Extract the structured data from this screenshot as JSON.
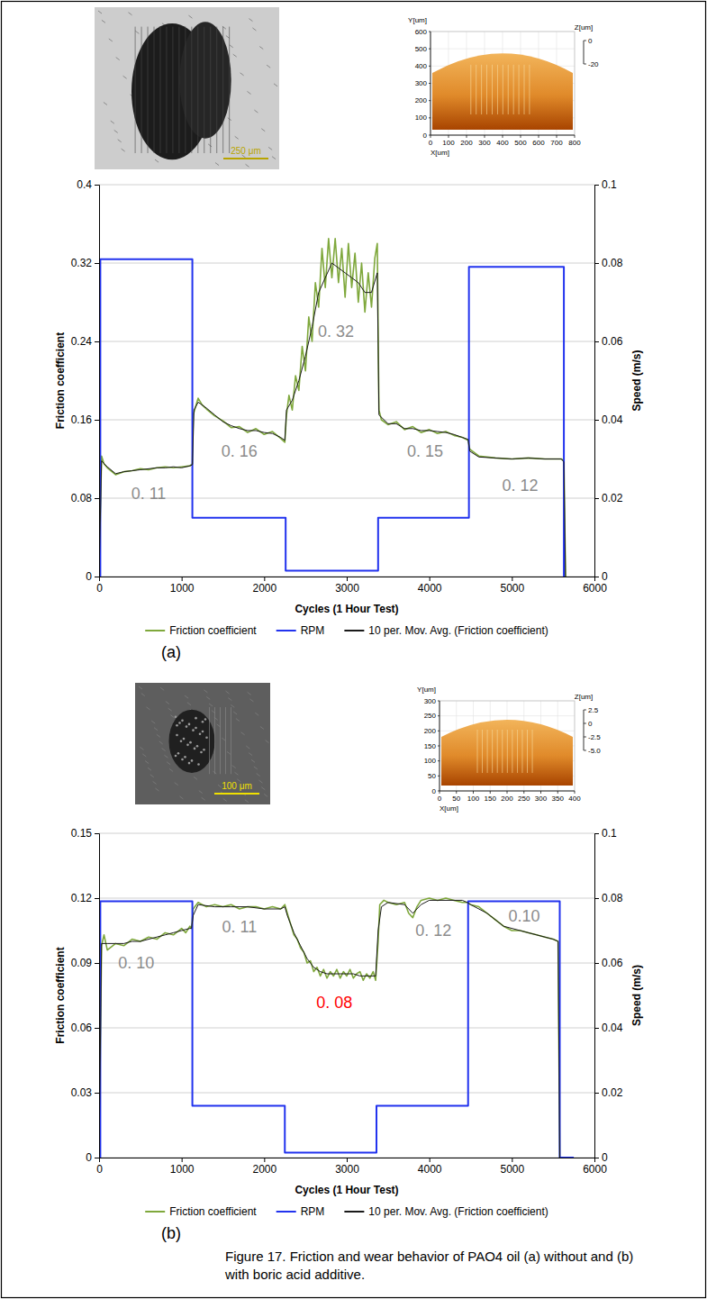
{
  "chart_data": [
    {
      "type": "line",
      "panel_label": "(a)",
      "x_label": "Cycles (1 Hour Test)",
      "y_label": "Friction coefficient",
      "y2_label": "Speed (m/s)",
      "xlim": [
        0,
        6000
      ],
      "xticks": [
        0,
        1000,
        2000,
        3000,
        4000,
        5000,
        6000
      ],
      "ylim": [
        0,
        0.4
      ],
      "yticks": [
        0,
        0.08,
        0.16,
        0.24,
        0.32,
        0.4
      ],
      "y2lim": [
        0,
        0.1
      ],
      "y2ticks": [
        0,
        0.02,
        0.04,
        0.06,
        0.08,
        0.1
      ],
      "grid": true,
      "legend": "bottom",
      "series": [
        {
          "name": "Friction coefficient",
          "color": "#7fa83c",
          "x": [
            0,
            30,
            60,
            100,
            200,
            300,
            400,
            500,
            600,
            700,
            800,
            900,
            1000,
            1100,
            1130,
            1140,
            1200,
            1250,
            1300,
            1400,
            1500,
            1600,
            1700,
            1800,
            1900,
            2000,
            2100,
            2200,
            2250,
            2270,
            2300,
            2340,
            2380,
            2420,
            2460,
            2500,
            2540,
            2580,
            2620,
            2660,
            2700,
            2740,
            2780,
            2820,
            2860,
            2900,
            2940,
            2980,
            3020,
            3060,
            3100,
            3140,
            3180,
            3220,
            3260,
            3300,
            3340,
            3370,
            3390,
            3420,
            3500,
            3600,
            3700,
            3800,
            3900,
            4000,
            4100,
            4200,
            4300,
            4400,
            4470,
            4490,
            4600,
            4800,
            5000,
            5200,
            5400,
            5600,
            5630,
            5650
          ],
          "values": [
            0,
            0.123,
            0.115,
            0.111,
            0.104,
            0.107,
            0.108,
            0.11,
            0.109,
            0.111,
            0.112,
            0.111,
            0.112,
            0.113,
            0.115,
            0.165,
            0.182,
            0.175,
            0.171,
            0.164,
            0.159,
            0.152,
            0.153,
            0.147,
            0.151,
            0.145,
            0.148,
            0.141,
            0.137,
            0.165,
            0.185,
            0.17,
            0.205,
            0.19,
            0.235,
            0.21,
            0.265,
            0.24,
            0.3,
            0.275,
            0.335,
            0.295,
            0.345,
            0.305,
            0.345,
            0.3,
            0.335,
            0.285,
            0.34,
            0.295,
            0.33,
            0.28,
            0.32,
            0.27,
            0.31,
            0.275,
            0.325,
            0.34,
            0.17,
            0.16,
            0.155,
            0.158,
            0.15,
            0.153,
            0.147,
            0.15,
            0.146,
            0.148,
            0.144,
            0.142,
            0.139,
            0.13,
            0.123,
            0.121,
            0.12,
            0.121,
            0.12,
            0.12,
            0.118,
            0
          ]
        },
        {
          "name": "RPM",
          "color": "#2233ee",
          "axis": "y2",
          "line_style": "step",
          "x": [
            0,
            15,
            1130,
            2260,
            3380,
            4480,
            5630
          ],
          "values": [
            0,
            0.081,
            0.015,
            0.0015,
            0.015,
            0.079,
            0
          ]
        },
        {
          "name": "10 per. Mov. Avg. (Friction coefficient)",
          "color": "#1a1a1a",
          "x": [
            0,
            30,
            100,
            200,
            300,
            400,
            500,
            600,
            700,
            800,
            900,
            1000,
            1100,
            1130,
            1150,
            1200,
            1300,
            1400,
            1500,
            1600,
            1700,
            1800,
            1900,
            2000,
            2100,
            2200,
            2250,
            2270,
            2340,
            2420,
            2500,
            2580,
            2660,
            2740,
            2820,
            2900,
            2980,
            3060,
            3140,
            3220,
            3300,
            3370,
            3390,
            3500,
            3600,
            3700,
            3800,
            3900,
            4000,
            4100,
            4200,
            4300,
            4400,
            4470,
            4490,
            4600,
            4800,
            5000,
            5200,
            5400,
            5600,
            5630,
            5650
          ],
          "values": [
            0,
            0.118,
            0.112,
            0.105,
            0.107,
            0.108,
            0.109,
            0.11,
            0.111,
            0.111,
            0.112,
            0.111,
            0.113,
            0.114,
            0.17,
            0.178,
            0.172,
            0.165,
            0.158,
            0.154,
            0.151,
            0.149,
            0.149,
            0.147,
            0.146,
            0.142,
            0.139,
            0.17,
            0.18,
            0.2,
            0.225,
            0.255,
            0.29,
            0.305,
            0.32,
            0.315,
            0.31,
            0.305,
            0.3,
            0.29,
            0.29,
            0.31,
            0.165,
            0.156,
            0.156,
            0.151,
            0.151,
            0.149,
            0.149,
            0.148,
            0.147,
            0.145,
            0.142,
            0.14,
            0.128,
            0.122,
            0.121,
            0.12,
            0.121,
            0.12,
            0.12,
            0.117,
            0
          ]
        }
      ],
      "annotations": [
        {
          "text": "0. 11",
          "x": 600,
          "y": 0.085,
          "color": "#8c8c8c"
        },
        {
          "text": "0. 16",
          "x": 1700,
          "y": 0.128,
          "color": "#8c8c8c"
        },
        {
          "text": "0. 32",
          "x": 2870,
          "y": 0.25,
          "color": "#8c8c8c"
        },
        {
          "text": "0. 15",
          "x": 3950,
          "y": 0.128,
          "color": "#8c8c8c"
        },
        {
          "text": "0. 12",
          "x": 5100,
          "y": 0.093,
          "color": "#8c8c8c"
        }
      ],
      "insets": {
        "micrograph": {
          "scale_bar": "250 μm"
        },
        "surface": {
          "x_label": "X[um]",
          "xticks": [
            0,
            100,
            200,
            300,
            400,
            500,
            600,
            700,
            800
          ],
          "y_label": "Y[um]",
          "yticks": [
            0,
            100,
            200,
            300,
            400,
            500,
            600
          ],
          "z_label": "Z[um]",
          "zticks": [
            0,
            -20
          ]
        }
      }
    },
    {
      "type": "line",
      "panel_label": "(b)",
      "x_label": "Cycles (1 Hour Test)",
      "y_label": "Friction coefficient",
      "y2_label": "Speed (m/s)",
      "xlim": [
        0,
        6000
      ],
      "xticks": [
        0,
        1000,
        2000,
        3000,
        4000,
        5000,
        6000
      ],
      "ylim": [
        0,
        0.15
      ],
      "yticks": [
        0,
        0.03,
        0.06,
        0.09,
        0.12,
        0.15
      ],
      "y2lim": [
        0,
        0.1
      ],
      "y2ticks": [
        0,
        0.02,
        0.04,
        0.06,
        0.08,
        0.1
      ],
      "grid": true,
      "legend": "bottom",
      "series": [
        {
          "name": "Friction coefficient",
          "color": "#7fa83c",
          "x": [
            0,
            30,
            60,
            100,
            200,
            300,
            400,
            500,
            600,
            700,
            800,
            900,
            1000,
            1050,
            1100,
            1120,
            1140,
            1200,
            1300,
            1400,
            1500,
            1600,
            1700,
            1800,
            1900,
            2000,
            2100,
            2200,
            2250,
            2280,
            2320,
            2360,
            2400,
            2440,
            2480,
            2520,
            2560,
            2600,
            2640,
            2680,
            2720,
            2760,
            2800,
            2840,
            2880,
            2920,
            2960,
            3000,
            3040,
            3080,
            3120,
            3160,
            3200,
            3240,
            3280,
            3320,
            3350,
            3380,
            3400,
            3450,
            3500,
            3600,
            3700,
            3750,
            3800,
            3850,
            3900,
            4000,
            4100,
            4200,
            4300,
            4400,
            4460,
            4500,
            4600,
            4700,
            4800,
            4900,
            5000,
            5100,
            5200,
            5300,
            5400,
            5500,
            5560,
            5570,
            5580
          ],
          "values": [
            0,
            0.098,
            0.103,
            0.096,
            0.099,
            0.098,
            0.101,
            0.1,
            0.102,
            0.101,
            0.104,
            0.103,
            0.106,
            0.104,
            0.107,
            0.106,
            0.115,
            0.118,
            0.116,
            0.117,
            0.116,
            0.117,
            0.115,
            0.116,
            0.116,
            0.115,
            0.116,
            0.115,
            0.117,
            0.113,
            0.108,
            0.103,
            0.101,
            0.097,
            0.095,
            0.09,
            0.091,
            0.086,
            0.088,
            0.084,
            0.087,
            0.083,
            0.086,
            0.084,
            0.087,
            0.083,
            0.086,
            0.084,
            0.087,
            0.083,
            0.085,
            0.086,
            0.082,
            0.085,
            0.083,
            0.086,
            0.082,
            0.1,
            0.117,
            0.119,
            0.118,
            0.117,
            0.118,
            0.113,
            0.111,
            0.116,
            0.119,
            0.12,
            0.119,
            0.12,
            0.119,
            0.118,
            0.118,
            0.117,
            0.116,
            0.113,
            0.11,
            0.107,
            0.105,
            0.105,
            0.104,
            0.103,
            0.102,
            0.101,
            0.1,
            0.05,
            0
          ]
        },
        {
          "name": "RPM",
          "color": "#2233ee",
          "axis": "y2",
          "line_style": "step",
          "x": [
            0,
            15,
            1130,
            2250,
            3360,
            4470,
            5580,
            5750
          ],
          "values": [
            0,
            0.079,
            0.016,
            0.0015,
            0.016,
            0.079,
            0,
            0
          ]
        },
        {
          "name": "10 per. Mov. Avg. (Friction coefficient)",
          "color": "#1a1a1a",
          "x": [
            0,
            30,
            100,
            200,
            300,
            400,
            500,
            600,
            700,
            800,
            900,
            1000,
            1100,
            1120,
            1140,
            1200,
            1400,
            1600,
            1800,
            2000,
            2200,
            2250,
            2280,
            2360,
            2440,
            2520,
            2600,
            2680,
            2760,
            2840,
            2920,
            3000,
            3080,
            3160,
            3240,
            3350,
            3380,
            3420,
            3500,
            3700,
            3800,
            3900,
            4000,
            4200,
            4400,
            4460,
            4500,
            4700,
            4900,
            5100,
            5300,
            5500,
            5560,
            5580
          ],
          "values": [
            0,
            0.099,
            0.099,
            0.099,
            0.099,
            0.1,
            0.1,
            0.101,
            0.102,
            0.103,
            0.104,
            0.105,
            0.106,
            0.106,
            0.112,
            0.117,
            0.116,
            0.116,
            0.116,
            0.115,
            0.115,
            0.116,
            0.112,
            0.104,
            0.098,
            0.092,
            0.088,
            0.086,
            0.085,
            0.085,
            0.085,
            0.085,
            0.085,
            0.084,
            0.084,
            0.084,
            0.105,
            0.116,
            0.118,
            0.117,
            0.113,
            0.117,
            0.119,
            0.119,
            0.119,
            0.118,
            0.117,
            0.113,
            0.107,
            0.105,
            0.103,
            0.101,
            0.1,
            0
          ]
        }
      ],
      "annotations": [
        {
          "text": "0. 10",
          "x": 450,
          "y": 0.09,
          "color": "#8c8c8c"
        },
        {
          "text": "0. 11",
          "x": 1700,
          "y": 0.107,
          "color": "#8c8c8c"
        },
        {
          "text": "0. 08",
          "x": 2850,
          "y": 0.072,
          "color": "#ff0000"
        },
        {
          "text": "0. 12",
          "x": 4050,
          "y": 0.105,
          "color": "#8c8c8c"
        },
        {
          "text": "0.10",
          "x": 5150,
          "y": 0.112,
          "color": "#8c8c8c"
        }
      ],
      "insets": {
        "micrograph": {
          "scale_bar": "100 μm"
        },
        "surface": {
          "x_label": "X[um]",
          "xticks": [
            0,
            50,
            100,
            150,
            200,
            250,
            300,
            350,
            400
          ],
          "y_label": "Y[um]",
          "yticks": [
            0,
            50,
            100,
            150,
            200,
            250,
            300
          ],
          "z_label": "Z[um]",
          "zticks": [
            2.5,
            0,
            -2.5,
            {
              "value": -5,
              "label": "-5.0"
            }
          ]
        }
      }
    }
  ],
  "caption": "Figure 17. Friction and wear behavior of PAO4 oil (a) without and (b) with boric acid additive."
}
